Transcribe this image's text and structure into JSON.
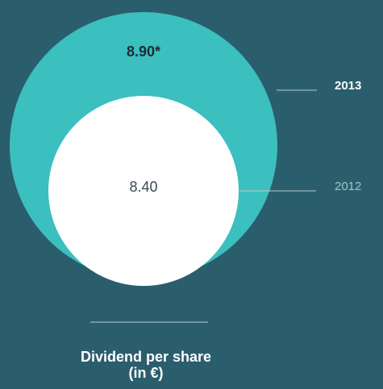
{
  "chart_data": {
    "type": "nested-circles",
    "title_lines": [
      "Dividend per share",
      "(in €)"
    ],
    "categories": [
      "2013",
      "2012"
    ],
    "values": [
      8.9,
      8.4
    ],
    "value_labels": [
      "8.90*",
      "8.40"
    ],
    "colors": [
      "#3bbfbf",
      "#ffffff"
    ]
  }
}
